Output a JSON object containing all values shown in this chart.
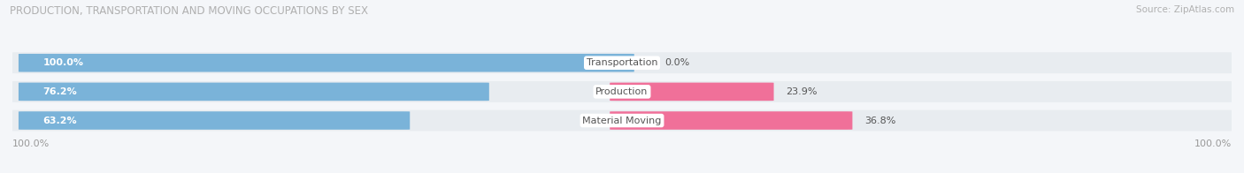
{
  "title": "PRODUCTION, TRANSPORTATION AND MOVING OCCUPATIONS BY SEX",
  "source": "Source: ZipAtlas.com",
  "categories": [
    "Transportation",
    "Production",
    "Material Moving"
  ],
  "male_pct": [
    100.0,
    76.2,
    63.2
  ],
  "female_pct": [
    0.0,
    23.9,
    36.8
  ],
  "male_color": "#7ab3d9",
  "female_color": "#f07099",
  "female_color_light": "#f9c0d0",
  "row_bg_color": "#e8ecf0",
  "title_color": "#b0b0b0",
  "source_color": "#b0b0b0",
  "label_white": "#ffffff",
  "label_dark": "#555555",
  "axis_label": "100.0%",
  "bar_height": 0.62,
  "background_color": "#f4f6f9"
}
